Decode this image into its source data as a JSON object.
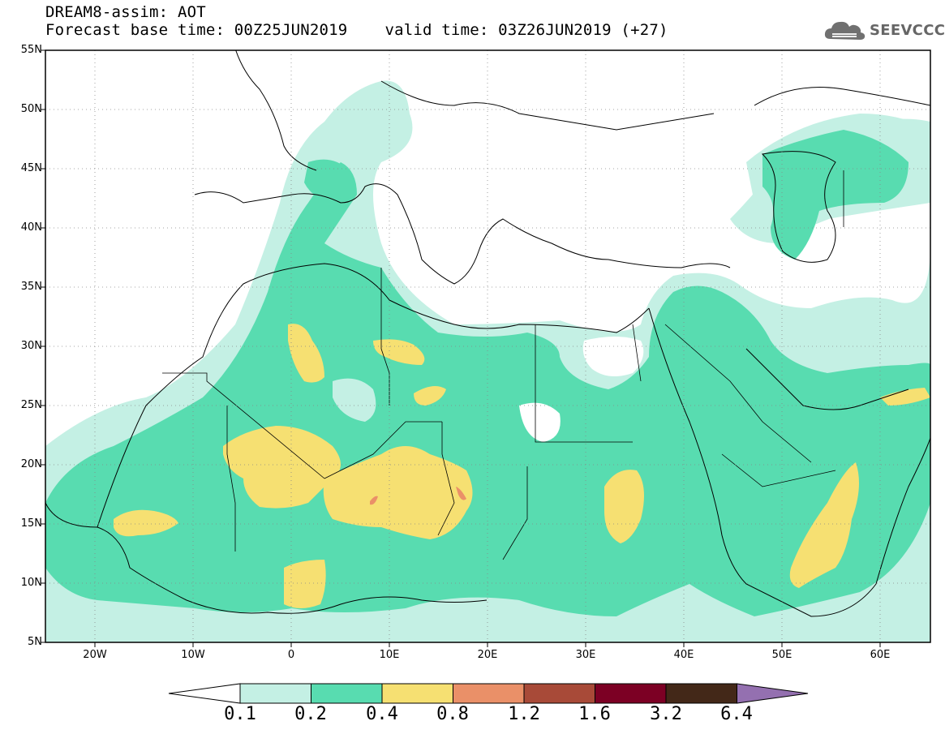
{
  "header": {
    "title": "DREAM8-assim: AOT",
    "base_time": "Forecast base time: 00Z25JUN2019",
    "valid_time": "valid time: 03Z26JUN2019 (+27)"
  },
  "logo": {
    "text": "SEEVCCC"
  },
  "map": {
    "projection": "lat-lon",
    "lat_range": [
      5,
      55
    ],
    "lon_range": [
      -25,
      65
    ],
    "lat_labels": [
      "55N",
      "50N",
      "45N",
      "40N",
      "35N",
      "30N",
      "25N",
      "20N",
      "15N",
      "10N",
      "5N"
    ],
    "lon_labels": [
      "20W",
      "10W",
      "0",
      "10E",
      "20E",
      "30E",
      "40E",
      "50E",
      "60E"
    ],
    "grid": "dotted"
  },
  "colorbar": {
    "labels": [
      "0.1",
      "0.2",
      "0.4",
      "0.8",
      "1.2",
      "1.6",
      "3.2",
      "6.4"
    ],
    "colors": [
      "#ffffff",
      "#c4f0e4",
      "#58dcb0",
      "#f6e072",
      "#ea9068",
      "#a84a38",
      "#7c0024",
      "#432818",
      "#9470b0"
    ]
  }
}
